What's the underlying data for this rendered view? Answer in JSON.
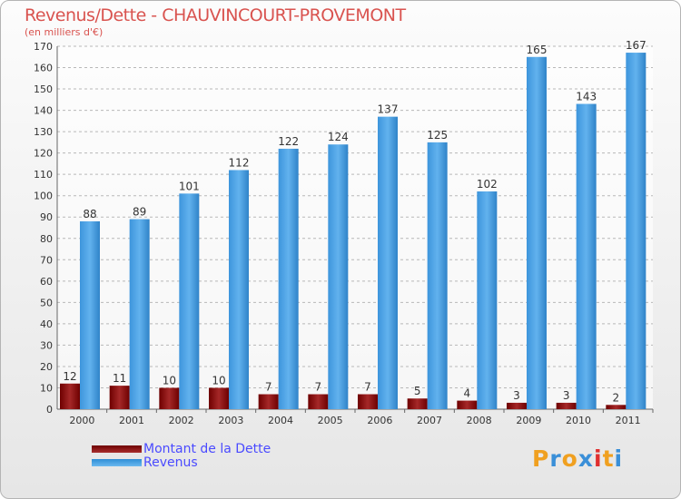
{
  "chart_data": {
    "type": "bar",
    "title": "Revenus/Dette - CHAUVINCOURT-PROVEMONT",
    "subtitle": "(en milliers d'€)",
    "categories": [
      "2000",
      "2001",
      "2002",
      "2003",
      "2004",
      "2005",
      "2006",
      "2007",
      "2008",
      "2009",
      "2010",
      "2011"
    ],
    "series": [
      {
        "name": "Montant de la Dette",
        "color": "#8b1a1a",
        "values": [
          12,
          11,
          10,
          10,
          7,
          7,
          7,
          5,
          4,
          3,
          3,
          2
        ]
      },
      {
        "name": "Revenus",
        "color": "#4aa3e6",
        "values": [
          88,
          89,
          101,
          112,
          122,
          124,
          137,
          125,
          102,
          165,
          143,
          167
        ]
      }
    ],
    "ylim": [
      0,
      170
    ],
    "yticks": [
      0,
      10,
      20,
      30,
      40,
      50,
      60,
      70,
      80,
      90,
      100,
      110,
      120,
      130,
      140,
      150,
      160,
      170
    ],
    "grid": true,
    "xlabel": "",
    "ylabel": ""
  },
  "legend": {
    "debt_label": "Montant de la Dette",
    "revenue_label": "Revenus"
  },
  "logo": {
    "letters": [
      "P",
      "r",
      "o",
      "x",
      "i",
      "t",
      "i"
    ],
    "colors": [
      "#f0a020",
      "#3a8fd8",
      "#f0a020",
      "#3a8fd8",
      "#e03030",
      "#f0a020",
      "#3a8fd8"
    ]
  }
}
